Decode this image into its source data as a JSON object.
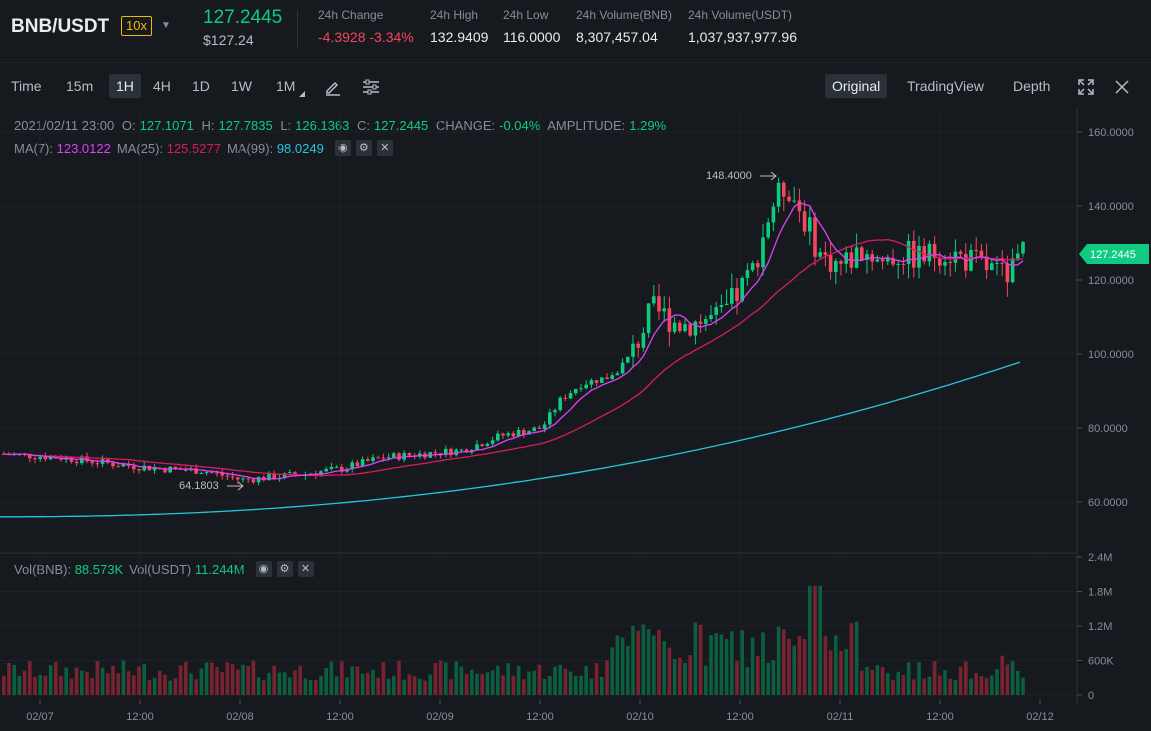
{
  "header": {
    "pair": "BNB/USDT",
    "leverage": "10x",
    "last_price": "127.2445",
    "last_price_usd": "$127.24",
    "stats": [
      {
        "label": "24h Change",
        "value": "-4.3928 -3.34%",
        "negative": true
      },
      {
        "label": "24h High",
        "value": "132.9409"
      },
      {
        "label": "24h Low",
        "value": "116.0000"
      },
      {
        "label": "24h Volume(BNB)",
        "value": "8,307,457.04"
      },
      {
        "label": "24h Volume(USDT)",
        "value": "1,037,937,977.96"
      }
    ]
  },
  "toolbar": {
    "intervals": [
      "Time",
      "15m",
      "1H",
      "4H",
      "1D",
      "1W",
      "1M"
    ],
    "active_interval": "1H",
    "views": [
      "Original",
      "TradingView",
      "Depth"
    ],
    "active_view": "Original",
    "icons": [
      "pencil-icon",
      "settings-sliders-icon",
      "expand-icon",
      "close-icon"
    ]
  },
  "ohlc": {
    "date": "2021/02/11 23:00",
    "o_label": "O:",
    "o": "127.1071",
    "h_label": "H:",
    "h": "127.7835",
    "l_label": "L:",
    "l": "126.1363",
    "c_label": "C:",
    "c": "127.2445",
    "change_label": "CHANGE:",
    "change": "-0.04%",
    "amplitude_label": "AMPLITUDE:",
    "amplitude": "1.29%"
  },
  "ma": {
    "ma7_label": "MA(7):",
    "ma7": "123.0122",
    "ma25_label": "MA(25):",
    "ma25": "125.5277",
    "ma99_label": "MA(99):",
    "ma99": "98.0249"
  },
  "volume_legend": {
    "bnb_label": "Vol(BNB):",
    "bnb": "88.573K",
    "usdt_label": "Vol(USDT)",
    "usdt": "11.244M"
  },
  "chart_data": {
    "type": "candlestick",
    "price_axis": {
      "ticks": [
        "160.0000",
        "140.0000",
        "120.0000",
        "100.0000",
        "80.0000",
        "60.0000"
      ],
      "values": [
        160,
        140,
        120,
        100,
        80,
        60
      ]
    },
    "volume_axis": {
      "ticks": [
        "2.4M",
        "1.8M",
        "1.2M",
        "600K",
        "0"
      ],
      "values": [
        2.4,
        1.8,
        1.2,
        0.6,
        0
      ]
    },
    "time_axis": [
      "02/07",
      "12:00",
      "02/08",
      "12:00",
      "02/09",
      "12:00",
      "02/10",
      "12:00",
      "02/11",
      "12:00",
      "02/12"
    ],
    "max_marker": "148.4000",
    "min_marker": "64.1803",
    "last_price_tag": "127.2445",
    "colors": {
      "up": "#0ecb81",
      "down": "#f6465d",
      "ma7": "#e040fb",
      "ma25": "#d81b60",
      "ma99": "#26c6da",
      "grid": "#1f2329"
    }
  }
}
